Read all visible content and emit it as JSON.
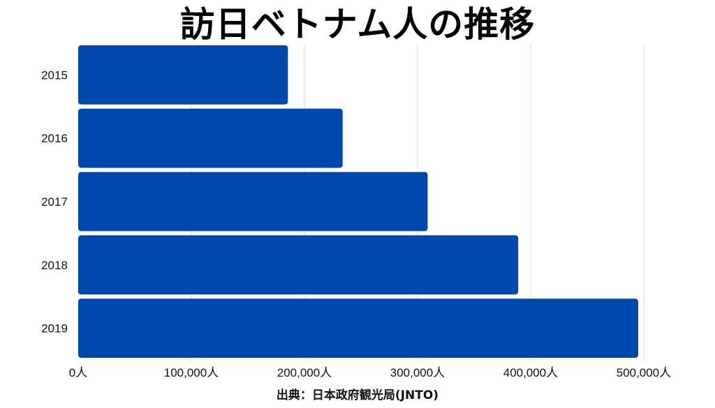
{
  "title": "訪日ベトナム人の推移",
  "source": "出典：日本政府観光局(JNTO)",
  "colors": {
    "bar": "#0047AB",
    "grid": "#d9d9d9",
    "text": "#111111",
    "background": "#ffffff"
  },
  "chart_data": {
    "type": "bar",
    "orientation": "horizontal",
    "title": "訪日ベトナム人の推移",
    "categories": [
      "2015",
      "2016",
      "2017",
      "2018",
      "2019"
    ],
    "values": [
      185395,
      233763,
      308898,
      389004,
      495051
    ],
    "xlim": [
      0,
      500000
    ],
    "xticks": [
      0,
      100000,
      200000,
      300000,
      400000,
      500000
    ],
    "xtick_labels": [
      "0人",
      "100,000人",
      "200,000人",
      "300,000人",
      "400,000人",
      "500,000人"
    ],
    "xlabel": "",
    "ylabel": "",
    "grid": "vertical",
    "legend": "none"
  }
}
